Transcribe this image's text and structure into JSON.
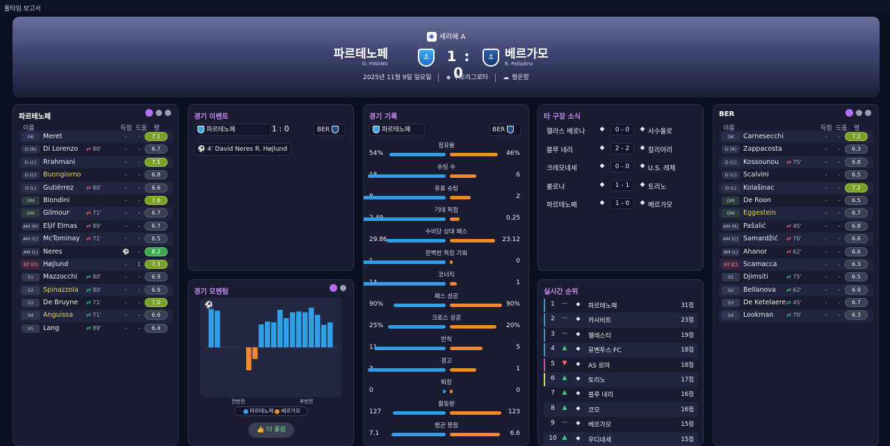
{
  "window_title": "풀타임 보고서",
  "header": {
    "league": "세리에 A",
    "home": {
      "name": "파르테노페",
      "manager": "G. HWANG"
    },
    "away": {
      "name": "베르가모",
      "manager": "R. Palladino"
    },
    "score": "1 : 0",
    "date": "2025년 11월 9일 일요일",
    "venue": "푸오리그로타",
    "weather": "평온함"
  },
  "home_lineup": {
    "title": "파르테노페",
    "headers": {
      "name": "이름",
      "goals": "득점",
      "assists": "도움",
      "rating": "평점"
    },
    "players": [
      {
        "pos": "GK",
        "name": "Meret",
        "sub": "",
        "goals": "-",
        "assists": "-",
        "rating": "7.1",
        "hl": "g"
      },
      {
        "pos": "D (R)",
        "name": "Di Lorenzo",
        "sub": "80'",
        "subdir": "out",
        "goals": "-",
        "assists": "-",
        "rating": "6.7",
        "hl": ""
      },
      {
        "pos": "D (C)",
        "name": "Rrahmani",
        "sub": "",
        "goals": "-",
        "assists": "-",
        "rating": "7.1",
        "hl": "g"
      },
      {
        "pos": "D (C)",
        "name": "Buongiorno",
        "sub": "",
        "goals": "-",
        "assists": "-",
        "rating": "6.8",
        "hl": "",
        "yellow": true
      },
      {
        "pos": "D (L)",
        "name": "Gutiérrez",
        "sub": "80'",
        "subdir": "out",
        "goals": "-",
        "assists": "-",
        "rating": "6.6",
        "hl": ""
      },
      {
        "pos": "DM",
        "name": "Biondini",
        "sub": "",
        "goals": "-",
        "assists": "-",
        "rating": "7.6",
        "hl": "g"
      },
      {
        "pos": "DM",
        "name": "Gilmour",
        "sub": "71'",
        "subdir": "out",
        "goals": "-",
        "assists": "-",
        "rating": "6.7",
        "hl": ""
      },
      {
        "pos": "AM (R)",
        "name": "Eljif Elmas",
        "sub": "89'",
        "subdir": "out",
        "goals": "-",
        "assists": "-",
        "rating": "6.7",
        "hl": ""
      },
      {
        "pos": "AM (C)",
        "name": "McTominay",
        "sub": "71'",
        "subdir": "out",
        "goals": "-",
        "assists": "-",
        "rating": "6.5",
        "hl": ""
      },
      {
        "pos": "AM (L)",
        "name": "Neres",
        "sub": "",
        "goals": "⚽",
        "assists": "-",
        "rating": "8.2",
        "hl": "gg"
      },
      {
        "pos": "ST (C)",
        "name": "Højlund",
        "sub": "",
        "goals": "-",
        "assists": "1",
        "rating": "7.3",
        "hl": "g"
      },
      {
        "pos": "S1",
        "name": "Mazzocchi",
        "sub": "80'",
        "subdir": "in",
        "goals": "-",
        "assists": "-",
        "rating": "6.9",
        "hl": ""
      },
      {
        "pos": "S2",
        "name": "Spinazzola",
        "sub": "80'",
        "subdir": "in",
        "goals": "-",
        "assists": "-",
        "rating": "6.9",
        "hl": "",
        "yellow": true
      },
      {
        "pos": "S3",
        "name": "De Bruyne",
        "sub": "71'",
        "subdir": "in",
        "goals": "-",
        "assists": "-",
        "rating": "7.0",
        "hl": "g"
      },
      {
        "pos": "S4",
        "name": "Anguissa",
        "sub": "71'",
        "subdir": "in",
        "goals": "-",
        "assists": "-",
        "rating": "6.6",
        "hl": "",
        "yellow": true
      },
      {
        "pos": "S5",
        "name": "Lang",
        "sub": "89'",
        "subdir": "in",
        "goals": "-",
        "assists": "-",
        "rating": "6.4",
        "hl": ""
      }
    ]
  },
  "away_lineup": {
    "title": "BER",
    "headers": {
      "name": "이름",
      "goals": "득점",
      "assists": "도움",
      "rating": "평점"
    },
    "players": [
      {
        "pos": "GK",
        "name": "Carnesecchi",
        "sub": "",
        "goals": "-",
        "assists": "-",
        "rating": "7.2",
        "hl": "g"
      },
      {
        "pos": "D (R)",
        "name": "Zappacosta",
        "sub": "",
        "goals": "-",
        "assists": "-",
        "rating": "6.3",
        "hl": ""
      },
      {
        "pos": "D (C)",
        "name": "Kossounou",
        "sub": "75'",
        "subdir": "out",
        "goals": "-",
        "assists": "-",
        "rating": "6.8",
        "hl": ""
      },
      {
        "pos": "D (C)",
        "name": "Scalvini",
        "sub": "",
        "goals": "-",
        "assists": "-",
        "rating": "6.5",
        "hl": ""
      },
      {
        "pos": "D (L)",
        "name": "Kolašinac",
        "sub": "",
        "goals": "-",
        "assists": "-",
        "rating": "7.2",
        "hl": "g"
      },
      {
        "pos": "DM",
        "name": "De Roon",
        "sub": "",
        "goals": "-",
        "assists": "-",
        "rating": "6.5",
        "hl": ""
      },
      {
        "pos": "DM",
        "name": "Eggestein",
        "sub": "",
        "goals": "-",
        "assists": "-",
        "rating": "6.7",
        "hl": "",
        "yellow": true
      },
      {
        "pos": "AM (R)",
        "name": "Pašalić",
        "sub": "45'",
        "subdir": "out",
        "goals": "-",
        "assists": "-",
        "rating": "6.8",
        "hl": ""
      },
      {
        "pos": "AM (C)",
        "name": "Samardžić",
        "sub": "70'",
        "subdir": "out",
        "goals": "-",
        "assists": "-",
        "rating": "6.6",
        "hl": ""
      },
      {
        "pos": "AM (L)",
        "name": "Ahanor",
        "sub": "62'",
        "subdir": "out",
        "goals": "-",
        "assists": "-",
        "rating": "6.6",
        "hl": ""
      },
      {
        "pos": "ST (C)",
        "name": "Scamacca",
        "sub": "",
        "goals": "-",
        "assists": "-",
        "rating": "6.3",
        "hl": ""
      },
      {
        "pos": "S1",
        "name": "Djimsiti",
        "sub": "75'",
        "subdir": "in",
        "goals": "-",
        "assists": "-",
        "rating": "6.5",
        "hl": ""
      },
      {
        "pos": "S2",
        "name": "Bellanova",
        "sub": "62'",
        "subdir": "in",
        "goals": "-",
        "assists": "-",
        "rating": "6.9",
        "hl": ""
      },
      {
        "pos": "S3",
        "name": "De Ketelaere",
        "sub": "45'",
        "subdir": "in",
        "goals": "-",
        "assists": "-",
        "rating": "6.7",
        "hl": ""
      },
      {
        "pos": "S4",
        "name": "Lookman",
        "sub": "70'",
        "subdir": "in",
        "goals": "-",
        "assists": "-",
        "rating": "6.3",
        "hl": ""
      }
    ]
  },
  "events": {
    "title": "경기 이벤트",
    "home": "파르테노페",
    "score": "1 : 0",
    "away": "BER",
    "goal": "4' David Neres R. Højlund"
  },
  "stats": {
    "title": "경기 기록",
    "home": "파르테노페",
    "away": "BER",
    "rows": [
      {
        "label": "점유율",
        "h": "54%",
        "a": "46%",
        "hv": 54,
        "av": 46
      },
      {
        "label": "슈팅 수",
        "h": "18",
        "a": "6",
        "hv": 18,
        "av": 6
      },
      {
        "label": "유효 슈팅",
        "h": "8",
        "a": "2",
        "hv": 8,
        "av": 2
      },
      {
        "label": "기대 득점",
        "h": "2.49",
        "a": "0.25",
        "hv": 2.49,
        "av": 0.25
      },
      {
        "label": "수비당 상대 패스",
        "h": "29.86",
        "a": "23.12",
        "hv": 29.86,
        "av": 23.12
      },
      {
        "label": "완벽한 득점 기회",
        "h": "1",
        "a": "0",
        "hv": 1,
        "av": 0
      },
      {
        "label": "코너킥",
        "h": "14",
        "a": "1",
        "hv": 14,
        "av": 1
      },
      {
        "label": "패스 성공",
        "h": "90%",
        "a": "90%",
        "hv": 90,
        "av": 90
      },
      {
        "label": "크로스 성공",
        "h": "25%",
        "a": "20%",
        "hv": 25,
        "av": 20
      },
      {
        "label": "반칙",
        "h": "11",
        "a": "5",
        "hv": 11,
        "av": 5
      },
      {
        "label": "경고",
        "h": "3",
        "a": "1",
        "hv": 3,
        "av": 1
      },
      {
        "label": "퇴장",
        "h": "0",
        "a": "0",
        "hv": 0,
        "av": 0
      },
      {
        "label": "활동량",
        "h": "127",
        "a": "123",
        "hv": 127,
        "av": 123
      },
      {
        "label": "평균 평점",
        "h": "7.1",
        "a": "6.6",
        "hv": 7.1,
        "av": 6.6
      }
    ]
  },
  "other_grounds": {
    "title": "타 구장 소식",
    "matches": [
      {
        "home": "헬라스 베로나",
        "score": "0 - 0",
        "away": "사수올로"
      },
      {
        "home": "블루 네리",
        "score": "2 - 2",
        "away": "칼리아리"
      },
      {
        "home": "크레모네세",
        "score": "0 - 0",
        "away": "U.S. 레체"
      },
      {
        "home": "볼로냐",
        "score": "1 - 1",
        "away": "토리노"
      },
      {
        "home": "파르테노페",
        "score": "1 - 0",
        "away": "베르가모"
      }
    ]
  },
  "standings": {
    "title": "실시간 순위",
    "rows": [
      {
        "rank": "1",
        "trend": "—",
        "team": "파르테노페",
        "pts": "31점",
        "stripe": "#2e9fe8"
      },
      {
        "rank": "2",
        "trend": "—",
        "team": "카사비트",
        "pts": "23점",
        "stripe": "#2e9fe8"
      },
      {
        "rank": "3",
        "trend": "—",
        "team": "첼레스티",
        "pts": "19점",
        "stripe": "#2e9fe8"
      },
      {
        "rank": "4",
        "trend": "▲",
        "team": "유벤투스 FC",
        "pts": "18점",
        "stripe": "#2e9fe8"
      },
      {
        "rank": "5",
        "trend": "▼",
        "team": "AS 로마",
        "pts": "18점",
        "stripe": "#e04aa8"
      },
      {
        "rank": "6",
        "trend": "▲",
        "team": "토리노",
        "pts": "17점",
        "stripe": "#e6d84a"
      },
      {
        "rank": "7",
        "trend": "▲",
        "team": "블루 네리",
        "pts": "16점",
        "stripe": ""
      },
      {
        "rank": "8",
        "trend": "▲",
        "team": "코모",
        "pts": "16점",
        "stripe": ""
      },
      {
        "rank": "9",
        "trend": "—",
        "team": "베르가모",
        "pts": "15점",
        "stripe": ""
      },
      {
        "rank": "10",
        "trend": "▲",
        "team": "우디네세",
        "pts": "15점",
        "stripe": ""
      }
    ]
  },
  "momentum": {
    "title": "경기 모멘텀",
    "first_half": "전반전",
    "second_half": "후반전",
    "legend_home": "파르테노페",
    "legend_away": "베르가모",
    "more": "더 좋음",
    "home_color": "#2e9fe8",
    "away_color": "#f08a2a",
    "values": [
      0.92,
      0.88,
      0,
      0,
      0,
      0,
      -0.55,
      -0.28,
      0.55,
      0.62,
      0.6,
      0.9,
      0.7,
      0.84,
      0.86,
      0.84,
      0.95,
      0.78,
      0.54,
      0.6
    ]
  }
}
